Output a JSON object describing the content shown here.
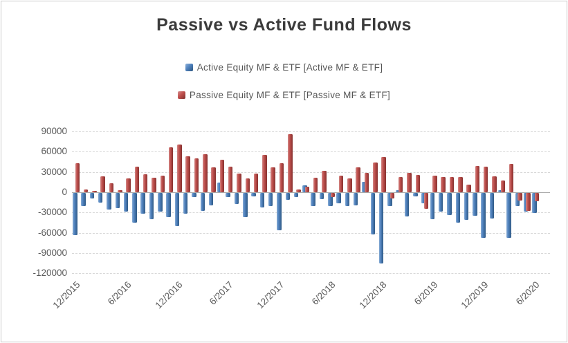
{
  "title": "Passive vs Active Fund Flows",
  "legend": [
    {
      "label": "Active Equity MF & ETF [Active MF & ETF]",
      "color": "#4f81bd"
    },
    {
      "label": "Passive Equity MF & ETF [Passive MF & ETF]",
      "color": "#c0504d"
    }
  ],
  "colors": {
    "active": "#4f81bd",
    "passive": "#c0504d",
    "grid": "#d8d8d8",
    "zero_axis": "#ababab",
    "axis_text": "#595959",
    "title_text": "#3b3b3b"
  },
  "chart_data": {
    "type": "bar",
    "title": "Passive vs Active Fund Flows",
    "categories": [
      "12/2015",
      "1/2016",
      "2/2016",
      "3/2016",
      "4/2016",
      "5/2016",
      "6/2016",
      "7/2016",
      "8/2016",
      "9/2016",
      "10/2016",
      "11/2016",
      "12/2016",
      "1/2017",
      "2/2017",
      "3/2017",
      "4/2017",
      "5/2017",
      "6/2017",
      "7/2017",
      "8/2017",
      "9/2017",
      "10/2017",
      "11/2017",
      "12/2017",
      "1/2018",
      "2/2018",
      "3/2018",
      "4/2018",
      "5/2018",
      "6/2018",
      "7/2018",
      "8/2018",
      "9/2018",
      "10/2018",
      "11/2018",
      "12/2018",
      "1/2019",
      "2/2019",
      "3/2019",
      "4/2019",
      "5/2019",
      "6/2019",
      "7/2019",
      "8/2019",
      "9/2019",
      "10/2019",
      "11/2019",
      "12/2019",
      "1/2020",
      "2/2020",
      "3/2020",
      "4/2020",
      "5/2020",
      "6/2020"
    ],
    "series": [
      {
        "name": "Active Equity MF & ETF [Active MF & ETF]",
        "color": "#4f81bd",
        "values": [
          -62000,
          -19000,
          -8000,
          -14000,
          -25000,
          -23000,
          -28000,
          -44500,
          -31000,
          -39000,
          -27500,
          -36000,
          -49500,
          -31000,
          -6000,
          -26500,
          -18000,
          14500,
          -6000,
          -16000,
          -36000,
          -5000,
          -21000,
          -19000,
          -55000,
          -10500,
          -6000,
          10000,
          -19500,
          -9500,
          -19500,
          -15500,
          -19500,
          -18000,
          15500,
          -61500,
          -104000,
          -19000,
          3500,
          -35000,
          -5000,
          -15000,
          -39000,
          -27500,
          -32500,
          -44000,
          -40000,
          -34000,
          -66500,
          -37500,
          3000,
          -66500,
          -19000,
          -27500,
          -30000
        ]
      },
      {
        "name": "Passive Equity MF & ETF [Passive MF & ETF]",
        "color": "#c0504d",
        "values": [
          43000,
          4000,
          2500,
          24000,
          13500,
          3000,
          20000,
          37500,
          26500,
          22000,
          24500,
          67000,
          71000,
          53000,
          50500,
          56000,
          37000,
          48000,
          38000,
          28000,
          20000,
          28000,
          55500,
          36500,
          43500,
          86500,
          4500,
          8000,
          22000,
          31500,
          -6000,
          25000,
          20000,
          37000,
          29000,
          44500,
          52000,
          -8000,
          23000,
          29000,
          25500,
          -23500,
          24500,
          23000,
          22500,
          23000,
          11500,
          38500,
          37500,
          24000,
          17000,
          42000,
          -11500,
          -26500,
          -12000
        ]
      }
    ],
    "y_ticks": [
      90000,
      60000,
      30000,
      0,
      -30000,
      -60000,
      -90000,
      -120000
    ],
    "ylim": [
      -120000,
      90000
    ],
    "x_tick_labels": [
      "12/2015",
      "6/2016",
      "12/2016",
      "6/2017",
      "12/2017",
      "6/2018",
      "12/2018",
      "6/2019",
      "12/2019",
      "6/2020"
    ],
    "x_tick_every": 6,
    "grid": "dashed-horizontal",
    "legend_position": "top"
  }
}
